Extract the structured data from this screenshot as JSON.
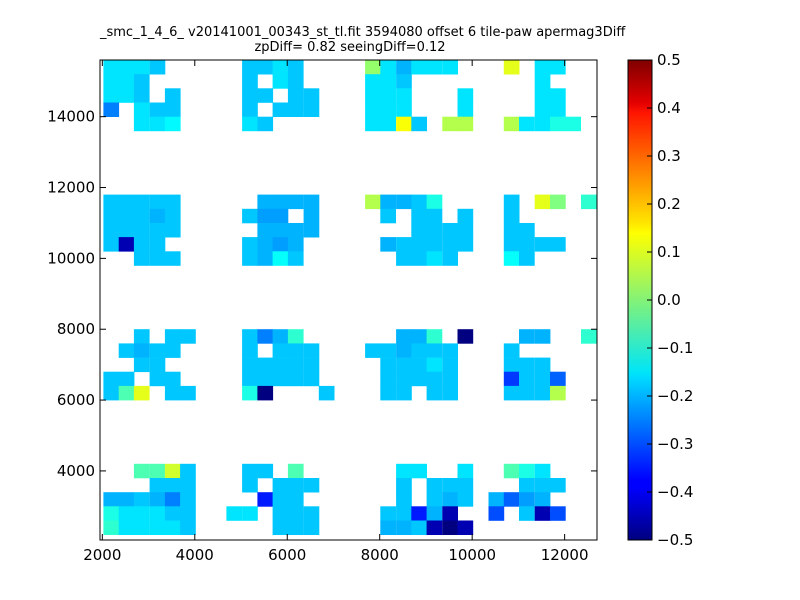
{
  "chart_data": {
    "type": "heatmap",
    "title": "_smc_1_4_6_ v20141001_00343_st_tl.fit 3594080 offset 6 tile-paw apermag3Diff",
    "subtitle": "zpDiff= 0.82 seeingDiff=0.12",
    "xlabel": "",
    "ylabel": "",
    "xlim": [
      1950,
      12700
    ],
    "ylim": [
      2050,
      15600
    ],
    "xticks": [
      "2000",
      "4000",
      "6000",
      "8000",
      "10000",
      "12000"
    ],
    "yticks": [
      "4000",
      "6000",
      "8000",
      "10000",
      "12000",
      "14000"
    ],
    "grid": false,
    "colorbar": {
      "colormap": "jet",
      "vmin": -0.5,
      "vmax": 0.5,
      "ticks": [
        "0.5",
        "0.4",
        "0.3",
        "0.2",
        "0.1",
        "0.0",
        "−0.1",
        "−0.2",
        "−0.3",
        "−0.4",
        "−0.5"
      ]
    },
    "cell_size": [
      333,
      400
    ],
    "cells": [
      [
        2190,
        15400,
        -0.15
      ],
      [
        2520,
        15400,
        -0.15
      ],
      [
        2850,
        15400,
        -0.15
      ],
      [
        3190,
        15400,
        -0.18
      ],
      [
        2190,
        15000,
        -0.15
      ],
      [
        2520,
        15000,
        -0.15
      ],
      [
        2850,
        15000,
        -0.18
      ],
      [
        2190,
        14600,
        -0.15
      ],
      [
        2520,
        14600,
        -0.15
      ],
      [
        2850,
        14600,
        -0.18
      ],
      [
        3520,
        14600,
        -0.18
      ],
      [
        2190,
        14200,
        -0.25
      ],
      [
        2850,
        14200,
        -0.15
      ],
      [
        3190,
        14200,
        -0.18
      ],
      [
        3520,
        14200,
        -0.18
      ],
      [
        2850,
        13800,
        -0.15
      ],
      [
        3190,
        13800,
        -0.15
      ],
      [
        3520,
        13800,
        -0.13
      ],
      [
        5190,
        15400,
        -0.18
      ],
      [
        5520,
        15400,
        -0.18
      ],
      [
        5850,
        15400,
        -0.15
      ],
      [
        6180,
        15400,
        -0.18
      ],
      [
        5190,
        15000,
        -0.18
      ],
      [
        5850,
        15000,
        -0.15
      ],
      [
        6180,
        15000,
        -0.18
      ],
      [
        5190,
        14600,
        -0.18
      ],
      [
        5520,
        14600,
        -0.18
      ],
      [
        6180,
        14600,
        -0.18
      ],
      [
        6520,
        14600,
        -0.18
      ],
      [
        5190,
        14200,
        -0.18
      ],
      [
        5850,
        14200,
        -0.18
      ],
      [
        6180,
        14200,
        -0.18
      ],
      [
        6520,
        14200,
        -0.18
      ],
      [
        5190,
        13800,
        -0.15
      ],
      [
        5520,
        13800,
        -0.18
      ],
      [
        7850,
        15400,
        0.02
      ],
      [
        8180,
        15400,
        -0.15
      ],
      [
        8520,
        15400,
        -0.2
      ],
      [
        8850,
        15400,
        -0.15
      ],
      [
        9180,
        15400,
        -0.15
      ],
      [
        9520,
        15400,
        -0.15
      ],
      [
        7850,
        15000,
        -0.15
      ],
      [
        8180,
        15000,
        -0.15
      ],
      [
        8520,
        15000,
        -0.18
      ],
      [
        7850,
        14600,
        -0.15
      ],
      [
        8180,
        14600,
        -0.15
      ],
      [
        8520,
        14600,
        -0.15
      ],
      [
        9850,
        14600,
        -0.15
      ],
      [
        7850,
        14200,
        -0.15
      ],
      [
        8180,
        14200,
        -0.15
      ],
      [
        8520,
        14200,
        -0.15
      ],
      [
        9850,
        14200,
        -0.15
      ],
      [
        7850,
        13800,
        -0.15
      ],
      [
        8180,
        13800,
        -0.15
      ],
      [
        8520,
        13800,
        0.12
      ],
      [
        8850,
        13800,
        -0.18
      ],
      [
        9520,
        13800,
        0.05
      ],
      [
        9850,
        13800,
        0.05
      ],
      [
        10850,
        15400,
        0.1
      ],
      [
        11520,
        15400,
        -0.15
      ],
      [
        11850,
        15400,
        -0.15
      ],
      [
        11520,
        15000,
        -0.15
      ],
      [
        11520,
        14600,
        -0.15
      ],
      [
        11850,
        14600,
        -0.15
      ],
      [
        11520,
        14200,
        -0.15
      ],
      [
        11850,
        14200,
        -0.15
      ],
      [
        10850,
        13800,
        0.05
      ],
      [
        11180,
        13800,
        -0.15
      ],
      [
        11520,
        13800,
        -0.15
      ],
      [
        11850,
        13800,
        -0.1
      ],
      [
        12180,
        13800,
        -0.1
      ],
      [
        2190,
        11600,
        -0.18
      ],
      [
        2520,
        11600,
        -0.18
      ],
      [
        2850,
        11600,
        -0.18
      ],
      [
        3190,
        11600,
        -0.18
      ],
      [
        3520,
        11600,
        -0.18
      ],
      [
        2190,
        11200,
        -0.18
      ],
      [
        2520,
        11200,
        -0.18
      ],
      [
        2850,
        11200,
        -0.18
      ],
      [
        3190,
        11200,
        -0.2
      ],
      [
        3520,
        11200,
        -0.18
      ],
      [
        2190,
        10800,
        -0.18
      ],
      [
        2520,
        10800,
        -0.18
      ],
      [
        2850,
        10800,
        -0.18
      ],
      [
        3190,
        10800,
        -0.18
      ],
      [
        3520,
        10800,
        -0.18
      ],
      [
        2190,
        10400,
        -0.18
      ],
      [
        2520,
        10400,
        -0.45
      ],
      [
        2850,
        10400,
        -0.18
      ],
      [
        3190,
        10400,
        -0.18
      ],
      [
        2850,
        10000,
        -0.18
      ],
      [
        3190,
        10000,
        -0.18
      ],
      [
        3520,
        10000,
        -0.18
      ],
      [
        5520,
        11600,
        -0.2
      ],
      [
        5850,
        11600,
        -0.2
      ],
      [
        6180,
        11600,
        -0.2
      ],
      [
        6520,
        11600,
        -0.2
      ],
      [
        5190,
        11200,
        -0.18
      ],
      [
        5520,
        11200,
        -0.22
      ],
      [
        5850,
        11200,
        -0.22
      ],
      [
        6520,
        11200,
        -0.2
      ],
      [
        5520,
        10800,
        -0.2
      ],
      [
        5850,
        10800,
        -0.2
      ],
      [
        6180,
        10800,
        -0.2
      ],
      [
        6520,
        10800,
        -0.2
      ],
      [
        5190,
        10400,
        -0.18
      ],
      [
        5520,
        10400,
        -0.2
      ],
      [
        5850,
        10400,
        -0.22
      ],
      [
        6180,
        10400,
        -0.2
      ],
      [
        5190,
        10000,
        -0.18
      ],
      [
        5520,
        10000,
        -0.2
      ],
      [
        5850,
        10000,
        -0.12
      ],
      [
        6180,
        10000,
        -0.18
      ],
      [
        7850,
        11600,
        0.05
      ],
      [
        8180,
        11600,
        -0.2
      ],
      [
        8520,
        11600,
        -0.2
      ],
      [
        8850,
        11600,
        -0.18
      ],
      [
        9180,
        11600,
        -0.1
      ],
      [
        8180,
        11200,
        -0.18
      ],
      [
        8850,
        11200,
        -0.18
      ],
      [
        9180,
        11200,
        -0.18
      ],
      [
        9850,
        11200,
        -0.18
      ],
      [
        8850,
        10800,
        -0.18
      ],
      [
        9180,
        10800,
        -0.18
      ],
      [
        9520,
        10800,
        -0.18
      ],
      [
        9850,
        10800,
        -0.18
      ],
      [
        8180,
        10400,
        -0.2
      ],
      [
        8520,
        10400,
        -0.18
      ],
      [
        8850,
        10400,
        -0.18
      ],
      [
        9180,
        10400,
        -0.18
      ],
      [
        9520,
        10400,
        -0.18
      ],
      [
        9850,
        10400,
        -0.18
      ],
      [
        8520,
        10000,
        -0.18
      ],
      [
        8850,
        10000,
        -0.18
      ],
      [
        9180,
        10000,
        -0.15
      ],
      [
        9520,
        10000,
        -0.18
      ],
      [
        10850,
        11600,
        -0.18
      ],
      [
        11520,
        11600,
        0.1
      ],
      [
        11850,
        11600,
        0.0
      ],
      [
        12520,
        11600,
        -0.08
      ],
      [
        10850,
        11200,
        -0.18
      ],
      [
        10850,
        10800,
        -0.18
      ],
      [
        11180,
        10800,
        -0.18
      ],
      [
        10850,
        10400,
        -0.18
      ],
      [
        11180,
        10400,
        -0.18
      ],
      [
        11520,
        10400,
        -0.18
      ],
      [
        11850,
        10400,
        -0.18
      ],
      [
        10850,
        10000,
        -0.12
      ],
      [
        11180,
        10000,
        -0.18
      ],
      [
        2850,
        7800,
        -0.18
      ],
      [
        3520,
        7800,
        -0.18
      ],
      [
        3850,
        7800,
        -0.18
      ],
      [
        2520,
        7400,
        -0.18
      ],
      [
        2850,
        7400,
        -0.2
      ],
      [
        3190,
        7400,
        -0.18
      ],
      [
        3520,
        7400,
        -0.18
      ],
      [
        2850,
        7000,
        -0.18
      ],
      [
        3190,
        7000,
        -0.18
      ],
      [
        2190,
        6600,
        -0.18
      ],
      [
        2520,
        6600,
        -0.18
      ],
      [
        3190,
        6600,
        -0.18
      ],
      [
        3520,
        6600,
        -0.18
      ],
      [
        2190,
        6200,
        -0.18
      ],
      [
        2520,
        6200,
        -0.05
      ],
      [
        2850,
        6200,
        0.1
      ],
      [
        3520,
        6200,
        -0.18
      ],
      [
        3850,
        6200,
        -0.18
      ],
      [
        5190,
        7800,
        -0.18
      ],
      [
        5520,
        7800,
        -0.25
      ],
      [
        5850,
        7800,
        -0.2
      ],
      [
        6180,
        7800,
        -0.08
      ],
      [
        5190,
        7400,
        -0.18
      ],
      [
        5850,
        7400,
        -0.18
      ],
      [
        6180,
        7400,
        -0.18
      ],
      [
        6520,
        7400,
        -0.18
      ],
      [
        5190,
        7000,
        -0.18
      ],
      [
        5520,
        7000,
        -0.18
      ],
      [
        5850,
        7000,
        -0.18
      ],
      [
        6180,
        7000,
        -0.18
      ],
      [
        6520,
        7000,
        -0.18
      ],
      [
        5190,
        6600,
        -0.18
      ],
      [
        5520,
        6600,
        -0.18
      ],
      [
        5850,
        6600,
        -0.18
      ],
      [
        6180,
        6600,
        -0.18
      ],
      [
        6520,
        6600,
        -0.18
      ],
      [
        5190,
        6200,
        -0.1
      ],
      [
        5520,
        6200,
        -0.5
      ],
      [
        6850,
        6200,
        -0.18
      ],
      [
        8520,
        7800,
        -0.2
      ],
      [
        8850,
        7800,
        -0.2
      ],
      [
        9180,
        7800,
        -0.08
      ],
      [
        9850,
        7800,
        -0.5
      ],
      [
        7850,
        7400,
        -0.18
      ],
      [
        8180,
        7400,
        -0.18
      ],
      [
        8520,
        7400,
        -0.2
      ],
      [
        8850,
        7400,
        -0.18
      ],
      [
        9180,
        7400,
        -0.18
      ],
      [
        9520,
        7400,
        -0.18
      ],
      [
        8180,
        7000,
        -0.18
      ],
      [
        8520,
        7000,
        -0.18
      ],
      [
        8850,
        7000,
        -0.18
      ],
      [
        9180,
        7000,
        -0.15
      ],
      [
        9520,
        7000,
        -0.18
      ],
      [
        8180,
        6600,
        -0.18
      ],
      [
        8520,
        6600,
        -0.18
      ],
      [
        8850,
        6600,
        -0.18
      ],
      [
        9180,
        6600,
        -0.18
      ],
      [
        9520,
        6600,
        -0.18
      ],
      [
        8180,
        6200,
        -0.18
      ],
      [
        8520,
        6200,
        -0.18
      ],
      [
        9180,
        6200,
        -0.18
      ],
      [
        9520,
        6200,
        -0.18
      ],
      [
        11180,
        7800,
        -0.2
      ],
      [
        11520,
        7800,
        -0.2
      ],
      [
        12520,
        7800,
        -0.08
      ],
      [
        10850,
        7400,
        -0.18
      ],
      [
        10850,
        7000,
        -0.18
      ],
      [
        11180,
        7000,
        -0.18
      ],
      [
        11520,
        7000,
        -0.18
      ],
      [
        10850,
        6600,
        -0.32
      ],
      [
        11180,
        6600,
        -0.18
      ],
      [
        11520,
        6600,
        -0.18
      ],
      [
        11850,
        6600,
        -0.28
      ],
      [
        10850,
        6200,
        -0.18
      ],
      [
        11180,
        6200,
        -0.18
      ],
      [
        11520,
        6200,
        -0.18
      ],
      [
        11850,
        6200,
        0.05
      ],
      [
        2850,
        4000,
        -0.05
      ],
      [
        3190,
        4000,
        -0.05
      ],
      [
        3520,
        4000,
        0.08
      ],
      [
        3850,
        4000,
        -0.18
      ],
      [
        3190,
        3600,
        -0.18
      ],
      [
        3520,
        3600,
        -0.18
      ],
      [
        3850,
        3600,
        -0.18
      ],
      [
        2190,
        3200,
        -0.2
      ],
      [
        2520,
        3200,
        -0.2
      ],
      [
        2850,
        3200,
        -0.18
      ],
      [
        3190,
        3200,
        -0.2
      ],
      [
        3520,
        3200,
        -0.25
      ],
      [
        3850,
        3200,
        -0.18
      ],
      [
        2190,
        2800,
        -0.1
      ],
      [
        2520,
        2800,
        -0.15
      ],
      [
        2850,
        2800,
        -0.15
      ],
      [
        3190,
        2800,
        -0.15
      ],
      [
        3520,
        2800,
        -0.18
      ],
      [
        3850,
        2800,
        -0.18
      ],
      [
        2190,
        2400,
        -0.08
      ],
      [
        2520,
        2400,
        -0.15
      ],
      [
        2850,
        2400,
        -0.15
      ],
      [
        3190,
        2400,
        -0.15
      ],
      [
        3520,
        2400,
        -0.15
      ],
      [
        3850,
        2400,
        -0.18
      ],
      [
        5190,
        4000,
        -0.18
      ],
      [
        5520,
        4000,
        -0.18
      ],
      [
        6180,
        4000,
        -0.05
      ],
      [
        5190,
        3600,
        -0.18
      ],
      [
        5850,
        3600,
        -0.18
      ],
      [
        6180,
        3600,
        -0.18
      ],
      [
        6520,
        3600,
        -0.18
      ],
      [
        5520,
        3200,
        -0.35
      ],
      [
        5850,
        3200,
        -0.18
      ],
      [
        6180,
        3200,
        -0.18
      ],
      [
        4850,
        2800,
        -0.15
      ],
      [
        5190,
        2800,
        -0.15
      ],
      [
        5850,
        2800,
        -0.18
      ],
      [
        6180,
        2800,
        -0.18
      ],
      [
        6520,
        2800,
        -0.18
      ],
      [
        5850,
        2400,
        -0.18
      ],
      [
        6180,
        2400,
        -0.18
      ],
      [
        6520,
        2400,
        -0.18
      ],
      [
        8520,
        4000,
        -0.15
      ],
      [
        8850,
        4000,
        -0.15
      ],
      [
        9850,
        4000,
        -0.15
      ],
      [
        8520,
        3600,
        -0.18
      ],
      [
        9180,
        3600,
        -0.18
      ],
      [
        9520,
        3600,
        -0.18
      ],
      [
        9850,
        3600,
        -0.18
      ],
      [
        8520,
        3200,
        -0.18
      ],
      [
        9180,
        3200,
        -0.18
      ],
      [
        9520,
        3200,
        -0.2
      ],
      [
        9850,
        3200,
        -0.18
      ],
      [
        8180,
        2800,
        -0.18
      ],
      [
        8520,
        2800,
        -0.18
      ],
      [
        8850,
        2800,
        -0.35
      ],
      [
        9180,
        2800,
        -0.2
      ],
      [
        9520,
        2800,
        -0.45
      ],
      [
        8180,
        2400,
        -0.2
      ],
      [
        8520,
        2400,
        -0.2
      ],
      [
        8850,
        2400,
        -0.18
      ],
      [
        9180,
        2400,
        -0.45
      ],
      [
        9520,
        2400,
        -0.5
      ],
      [
        9850,
        2400,
        -0.45
      ],
      [
        10850,
        4000,
        -0.05
      ],
      [
        11180,
        4000,
        -0.1
      ],
      [
        11520,
        4000,
        -0.15
      ],
      [
        11180,
        3600,
        -0.18
      ],
      [
        11520,
        3600,
        -0.18
      ],
      [
        11850,
        3600,
        -0.18
      ],
      [
        10520,
        3200,
        -0.2
      ],
      [
        10850,
        3200,
        -0.28
      ],
      [
        11180,
        3200,
        -0.22
      ],
      [
        11520,
        3200,
        -0.2
      ],
      [
        10520,
        2800,
        -0.3
      ],
      [
        11180,
        2800,
        -0.18
      ],
      [
        11520,
        2800,
        -0.45
      ],
      [
        11850,
        2800,
        -0.3
      ]
    ]
  }
}
